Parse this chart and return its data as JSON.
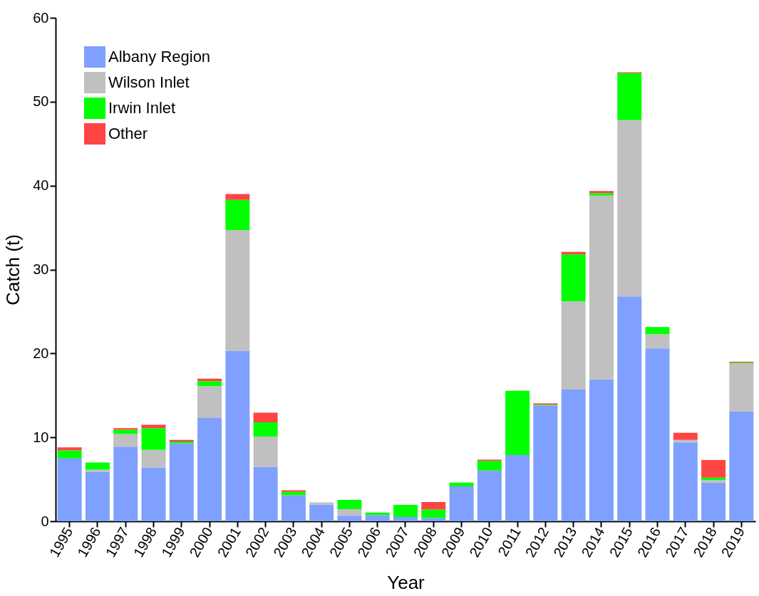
{
  "chart_data": {
    "type": "bar",
    "stacked": true,
    "xlabel": "Year",
    "ylabel": "Catch (t)",
    "categories": [
      "1995",
      "1996",
      "1997",
      "1998",
      "1999",
      "2000",
      "2001",
      "2002",
      "2003",
      "2004",
      "2005",
      "2006",
      "2007",
      "2008",
      "2009",
      "2010",
      "2011",
      "2012",
      "2013",
      "2014",
      "2015",
      "2016",
      "2017",
      "2018",
      "2019"
    ],
    "series": [
      {
        "name": "Albany Region",
        "color": "#7fa0ff",
        "values": [
          7.5,
          5.9,
          8.9,
          6.4,
          9.3,
          12.3,
          20.3,
          6.5,
          3.1,
          2.0,
          0.65,
          0.75,
          0.5,
          0.4,
          4.15,
          6.05,
          7.9,
          13.8,
          15.7,
          16.9,
          26.8,
          20.6,
          9.4,
          4.6,
          13.1
        ]
      },
      {
        "name": "Wilson Inlet",
        "color": "#c0c0c0",
        "values": [
          0,
          0.25,
          1.5,
          2.1,
          0,
          3.8,
          14.4,
          3.6,
          0,
          0.25,
          0.8,
          0,
          0,
          0,
          0,
          0,
          0,
          0,
          10.5,
          21.9,
          21.0,
          1.7,
          0.3,
          0.3,
          5.7
        ]
      },
      {
        "name": "Irwin Inlet",
        "color": "#00ff00",
        "values": [
          0.95,
          0.85,
          0.5,
          2.6,
          0.2,
          0.6,
          3.6,
          1.7,
          0.4,
          0,
          1.1,
          0.3,
          1.45,
          1.0,
          0.45,
          1.15,
          7.65,
          0.1,
          5.6,
          0.3,
          5.6,
          0.85,
          0,
          0.3,
          0.1
        ]
      },
      {
        "name": "Other",
        "color": "#ff4444",
        "values": [
          0.35,
          0,
          0.2,
          0.4,
          0.2,
          0.3,
          0.7,
          1.15,
          0.2,
          0,
          0,
          0,
          0,
          0.9,
          0,
          0.15,
          0,
          0.15,
          0.3,
          0.25,
          0.1,
          0,
          0.85,
          2.1,
          0.1
        ]
      }
    ],
    "ylim": [
      0,
      60
    ],
    "yticks": [
      0,
      10,
      20,
      30,
      40,
      50,
      60
    ],
    "grid": false,
    "legend": "top left"
  }
}
